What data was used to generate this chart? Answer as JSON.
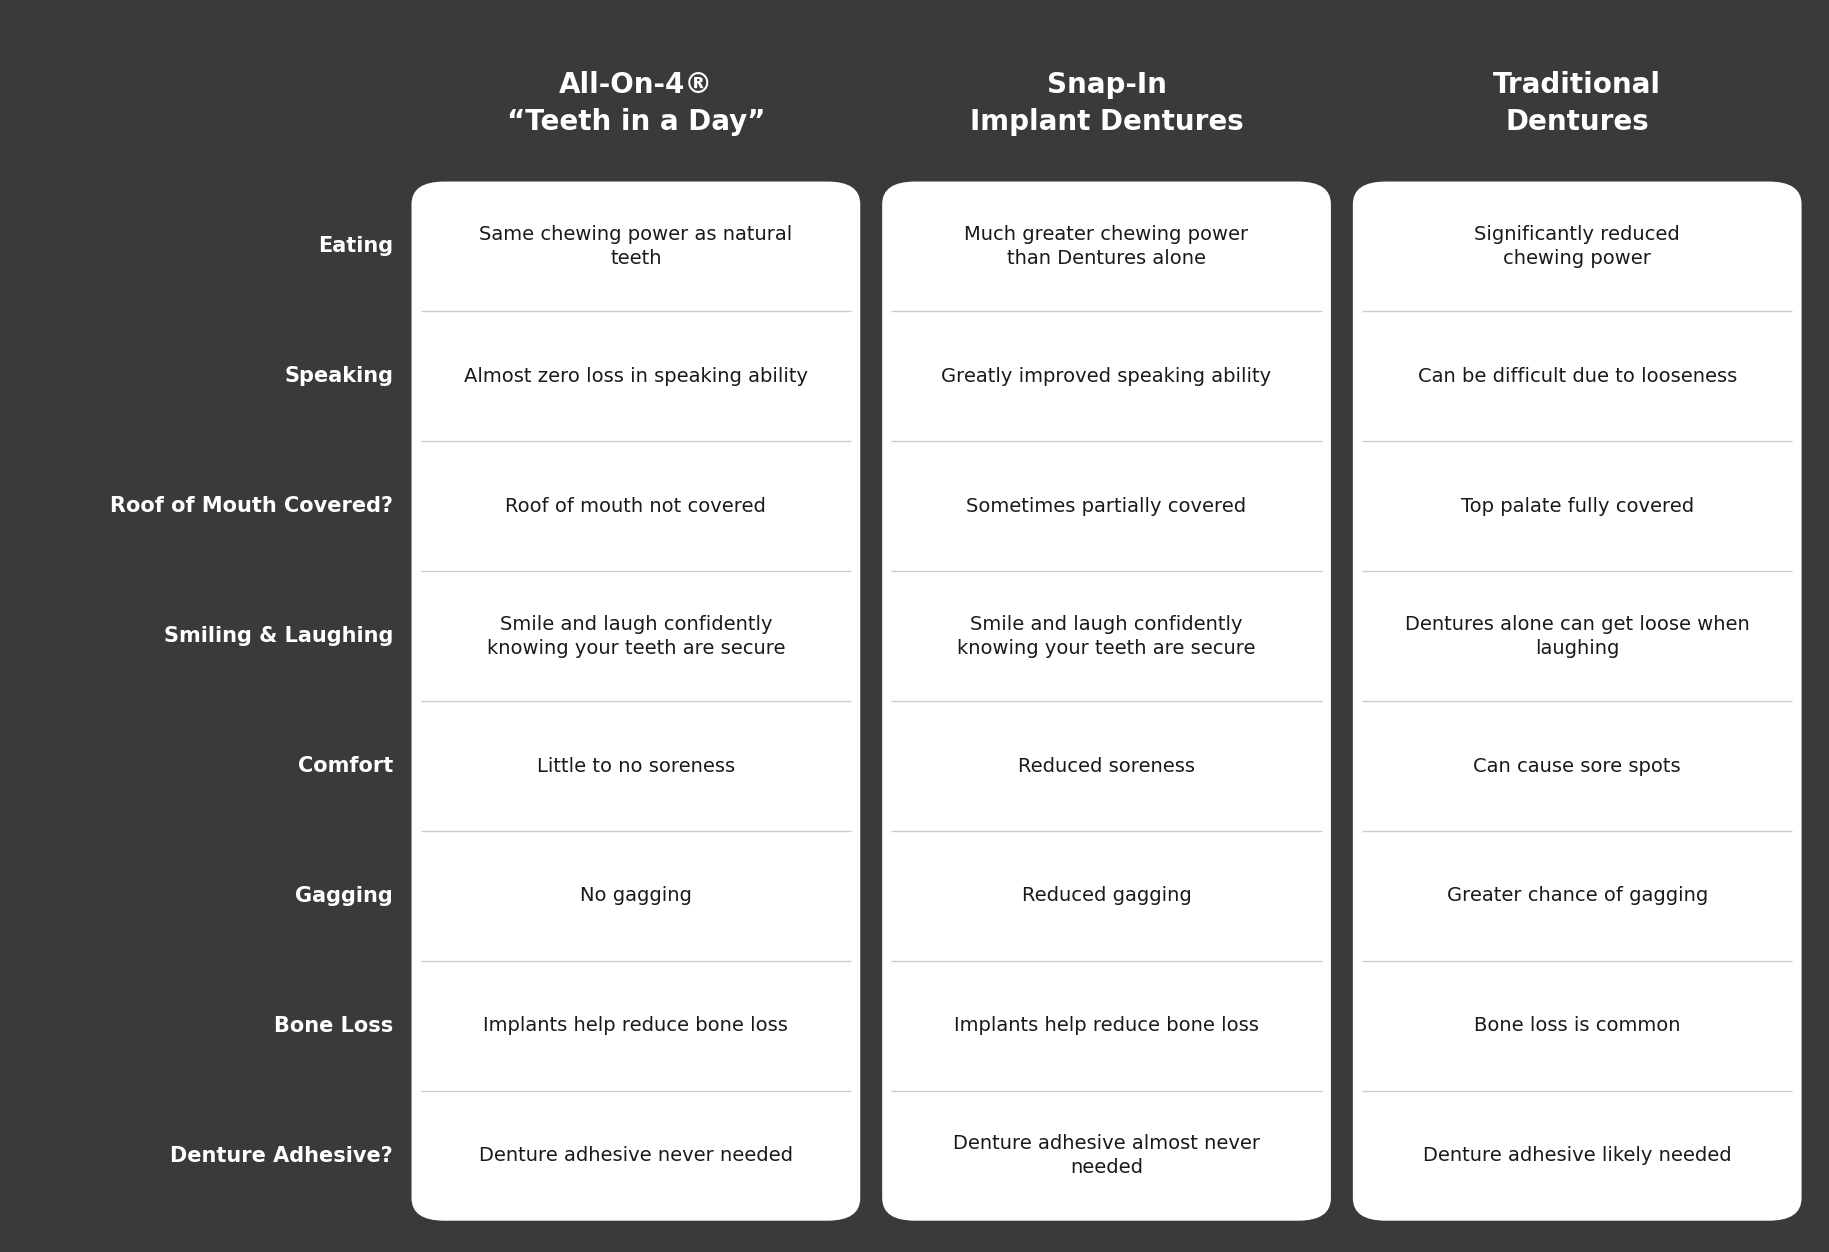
{
  "background_color": "#3a3a3a",
  "text_color_white": "#ffffff",
  "text_color_dark": "#1a1a1a",
  "cell_bg": "#ffffff",
  "figsize": [
    18.29,
    12.52
  ],
  "col_headers": [
    "All-On-4®\n“Teeth in a Day”",
    "Snap-In\nImplant Dentures",
    "Traditional\nDentures"
  ],
  "row_labels": [
    "Eating",
    "Speaking",
    "Roof of Mouth Covered?",
    "Smiling & Laughing",
    "Comfort",
    "Gagging",
    "Bone Loss",
    "Denture Adhesive?"
  ],
  "cell_data": [
    [
      "Same chewing power as natural\nteeth",
      "Much greater chewing power\nthan Dentures alone",
      "Significantly reduced\nchewing power"
    ],
    [
      "Almost zero loss in speaking ability",
      "Greatly improved speaking ability",
      "Can be difficult due to looseness"
    ],
    [
      "Roof of mouth not covered",
      "Sometimes partially covered",
      "Top palate fully covered"
    ],
    [
      "Smile and laugh confidently\nknowing your teeth are secure",
      "Smile and laugh confidently\nknowing your teeth are secure",
      "Dentures alone can get loose when\nlaughing"
    ],
    [
      "Little to no soreness",
      "Reduced soreness",
      "Can cause sore spots"
    ],
    [
      "No gagging",
      "Reduced gagging",
      "Greater chance of gagging"
    ],
    [
      "Implants help reduce bone loss",
      "Implants help reduce bone loss",
      "Bone loss is common"
    ],
    [
      "Denture adhesive never needed",
      "Denture adhesive almost never\nneeded",
      "Denture adhesive likely needed"
    ]
  ],
  "header_fontsize": 20,
  "row_label_fontsize": 15,
  "cell_fontsize": 14,
  "divider_color": "#cccccc",
  "divider_linewidth": 1.0
}
